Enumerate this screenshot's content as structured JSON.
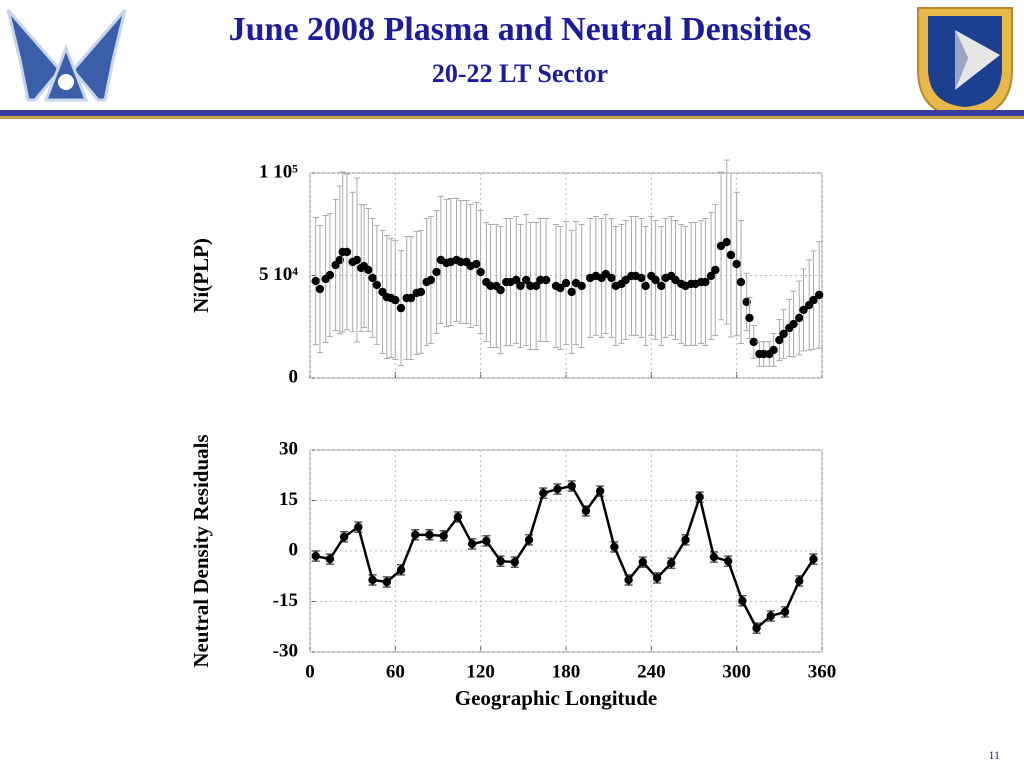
{
  "title": "June 2008 Plasma and Neutral Densities",
  "subtitle": "20-22 LT Sector",
  "page_number": "11",
  "chart_data": [
    {
      "type": "scatter",
      "ylabel": "Ni(PLP)",
      "x": [
        4,
        7,
        11,
        14,
        18,
        21,
        23,
        26,
        30,
        33,
        36,
        38,
        41,
        44,
        47,
        51,
        54,
        57,
        60,
        64,
        68,
        71,
        75,
        78,
        82,
        85,
        89,
        92,
        96,
        99,
        103,
        106,
        110,
        113,
        117,
        120,
        124,
        127,
        131,
        134,
        138,
        141,
        145,
        148,
        152,
        155,
        159,
        162,
        166,
        173,
        176,
        180,
        184,
        187,
        191,
        197,
        201,
        205,
        208,
        212,
        215,
        219,
        222,
        226,
        229,
        233,
        236,
        240,
        243,
        247,
        250,
        254,
        257,
        261,
        264,
        268,
        271,
        275,
        278,
        282,
        285,
        289,
        293,
        296,
        300,
        303,
        307,
        309,
        312,
        316,
        319,
        323,
        326,
        330,
        333,
        337,
        340,
        344,
        347,
        351,
        354,
        358
      ],
      "values": [
        47300,
        43400,
        48300,
        50200,
        55100,
        57600,
        61500,
        61500,
        56600,
        57600,
        53700,
        54600,
        52700,
        48800,
        45400,
        42000,
        39500,
        39000,
        38000,
        34100,
        39000,
        39000,
        41500,
        42000,
        46800,
        47800,
        51700,
        57600,
        56100,
        56600,
        57600,
        56600,
        56600,
        54600,
        55600,
        51700,
        46800,
        44900,
        44900,
        42900,
        46800,
        46800,
        47800,
        44900,
        47800,
        44900,
        44900,
        47800,
        47800,
        44900,
        43900,
        46300,
        42000,
        46300,
        44900,
        48800,
        49800,
        48800,
        50700,
        48800,
        44900,
        45900,
        47800,
        49800,
        49800,
        48800,
        44900,
        49800,
        47800,
        44900,
        48800,
        49800,
        47800,
        45900,
        44900,
        45900,
        45900,
        46800,
        46800,
        49800,
        52700,
        64400,
        66300,
        60000,
        55600,
        46800,
        37100,
        29300,
        17600,
        11700,
        11700,
        11700,
        13700,
        18500,
        21500,
        24400,
        26300,
        29300,
        33200,
        35600,
        38000,
        40500
      ],
      "errors": [
        31000,
        31000,
        31000,
        30000,
        32000,
        36000,
        39000,
        38000,
        34000,
        40000,
        31000,
        30000,
        30000,
        29000,
        29000,
        30000,
        30000,
        29000,
        29000,
        28000,
        30000,
        30000,
        30000,
        30000,
        31000,
        31000,
        30000,
        31000,
        31000,
        31000,
        30000,
        30000,
        30000,
        30000,
        30000,
        30000,
        29000,
        30000,
        30000,
        31000,
        31000,
        31000,
        31000,
        30000,
        32000,
        31000,
        31000,
        30000,
        30000,
        30000,
        30000,
        30000,
        30000,
        30000,
        30000,
        29000,
        29000,
        29000,
        29000,
        29000,
        29000,
        29000,
        29000,
        29000,
        29000,
        29000,
        29000,
        29000,
        29000,
        29000,
        29000,
        29000,
        29000,
        29000,
        29000,
        30000,
        30000,
        30000,
        31000,
        31000,
        32000,
        36000,
        40000,
        40000,
        35000,
        30000,
        14000,
        10000,
        8000,
        6000,
        6000,
        6000,
        8000,
        10000,
        12000,
        14000,
        16000,
        18000,
        20000,
        22000,
        24000,
        26000
      ],
      "color": "#000000",
      "xlim": [
        0,
        360
      ],
      "xticks": [
        0,
        60,
        120,
        180,
        240,
        300,
        360
      ],
      "ylim": [
        0,
        100000
      ],
      "yticks": [
        0,
        {
          "value": 50000,
          "label": "5 10⁴"
        },
        {
          "value": 100000,
          "label": "1 10⁵"
        }
      ],
      "grid": true
    },
    {
      "type": "line",
      "ylabel": "Neutral Density Residuals",
      "xlabel": "Geographic Longitude",
      "x": [
        4,
        14,
        24,
        34,
        44,
        54,
        64,
        74,
        84,
        94,
        104,
        114,
        124,
        134,
        144,
        154,
        164,
        174,
        184,
        194,
        204,
        214,
        224,
        234,
        244,
        254,
        264,
        274,
        284,
        294,
        304,
        314,
        324,
        334,
        344,
        354
      ],
      "values": [
        -1.5,
        -2.4,
        4.2,
        7.1,
        -8.6,
        -9.2,
        -5.6,
        4.8,
        4.8,
        4.5,
        10.1,
        2.1,
        3.0,
        -3.0,
        -3.3,
        3.3,
        17.2,
        18.4,
        19.3,
        11.9,
        17.8,
        1.2,
        -8.6,
        -3.3,
        -8.0,
        -3.6,
        3.3,
        16.0,
        -1.8,
        -3.0,
        -14.8,
        -22.9,
        -19.3,
        -18.1,
        -8.9,
        -2.4
      ],
      "errors": [
        1.5,
        1.5,
        1.5,
        1.5,
        1.5,
        1.5,
        1.5,
        1.5,
        1.5,
        1.5,
        1.5,
        1.5,
        1.5,
        1.5,
        1.5,
        1.5,
        1.5,
        1.5,
        1.5,
        1.5,
        1.5,
        1.5,
        1.5,
        1.5,
        1.5,
        1.5,
        1.5,
        1.5,
        1.5,
        1.5,
        1.5,
        1.5,
        1.5,
        1.5,
        1.5,
        1.5
      ],
      "color": "#000000",
      "xlim": [
        0,
        360
      ],
      "xticks": [
        0,
        60,
        120,
        180,
        240,
        300,
        360
      ],
      "ylim": [
        -30,
        30
      ],
      "yticks": [
        -30,
        -15,
        0,
        15,
        30
      ],
      "grid": true
    }
  ]
}
